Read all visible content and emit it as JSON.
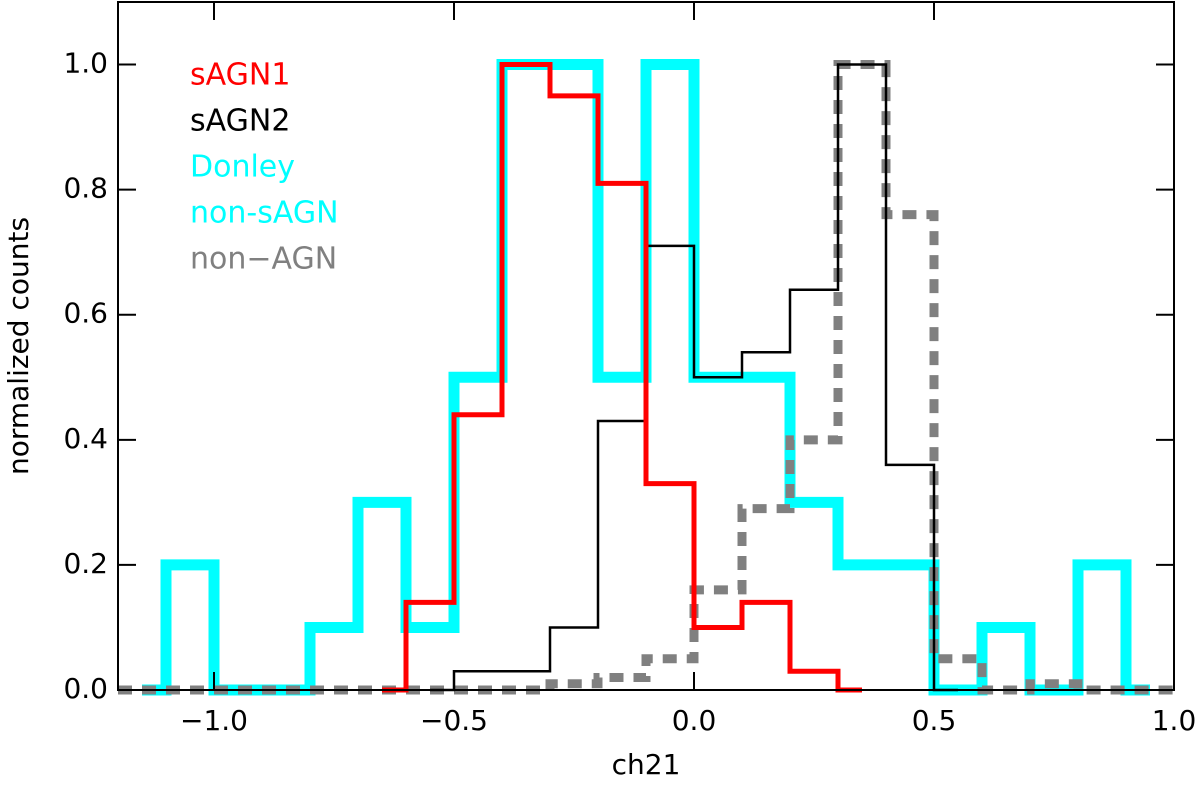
{
  "chart_data": {
    "type": "histogram",
    "xlabel": "ch21",
    "ylabel": "normalized counts",
    "xlim": [
      -1.2,
      1.0
    ],
    "ylim": [
      0,
      1.1
    ],
    "xticks": [
      {
        "value": -1.0,
        "label": "−1.0"
      },
      {
        "value": -0.5,
        "label": "−0.5"
      },
      {
        "value": 0.0,
        "label": "0.0"
      },
      {
        "value": 0.5,
        "label": "0.5"
      },
      {
        "value": 1.0,
        "label": "1.0"
      }
    ],
    "yticks": [
      {
        "value": 0.0,
        "label": "0.0"
      },
      {
        "value": 0.2,
        "label": "0.2"
      },
      {
        "value": 0.4,
        "label": "0.4"
      },
      {
        "value": 0.6,
        "label": "0.6"
      },
      {
        "value": 0.8,
        "label": "0.8"
      },
      {
        "value": 1.0,
        "label": "1.0"
      }
    ],
    "series": [
      {
        "name": "sAGN1",
        "color": "#ff0000",
        "linestyle": "solid",
        "bins": [
          -0.65,
          -0.6,
          -0.5,
          -0.4,
          -0.3,
          -0.2,
          -0.1,
          0.0,
          0.1,
          0.2,
          0.3,
          0.35
        ],
        "values": [
          0,
          0.14,
          0.44,
          1.0,
          0.95,
          0.81,
          0.33,
          0.1,
          0.14,
          0.03,
          0
        ]
      },
      {
        "name": "sAGN2",
        "color": "#000000",
        "linestyle": "solid",
        "bins": [
          -0.55,
          -0.5,
          -0.4,
          -0.3,
          -0.2,
          -0.1,
          0.0,
          0.1,
          0.2,
          0.3,
          0.4,
          0.5,
          0.55
        ],
        "values": [
          0,
          0.03,
          0.03,
          0.1,
          0.43,
          0.71,
          0.5,
          0.54,
          0.64,
          1.0,
          0.36,
          0
        ]
      },
      {
        "name": [
          "Donley",
          "non-sAGN"
        ],
        "color": "#00ffff",
        "linestyle": "solid",
        "bins": [
          -1.15,
          -1.1,
          -1.0,
          -0.9,
          -0.8,
          -0.7,
          -0.6,
          -0.5,
          -0.4,
          -0.3,
          -0.2,
          -0.1,
          0.0,
          0.1,
          0.2,
          0.3,
          0.4,
          0.5,
          0.6,
          0.7,
          0.8,
          0.9,
          0.95
        ],
        "values": [
          0,
          0.2,
          0,
          0,
          0.1,
          0.3,
          0.1,
          0.5,
          1.0,
          1.0,
          0.5,
          1.0,
          0.5,
          0.5,
          0.3,
          0.2,
          0.2,
          0,
          0.1,
          0,
          0.2,
          0
        ]
      },
      {
        "name": "non−AGN",
        "color": "#808080",
        "linestyle": "dashed",
        "bins": [
          -1.2,
          -1.1,
          -1.0,
          -0.9,
          -0.8,
          -0.7,
          -0.6,
          -0.5,
          -0.4,
          -0.3,
          -0.2,
          -0.1,
          0.0,
          0.1,
          0.2,
          0.3,
          0.4,
          0.5,
          0.6,
          0.7,
          0.8,
          0.9,
          1.0
        ],
        "values": [
          0,
          0,
          0,
          0,
          0,
          0,
          0,
          0,
          0,
          0.01,
          0.02,
          0.05,
          0.16,
          0.29,
          0.4,
          1.0,
          0.76,
          0.05,
          0,
          0.01,
          0,
          0
        ]
      }
    ]
  }
}
